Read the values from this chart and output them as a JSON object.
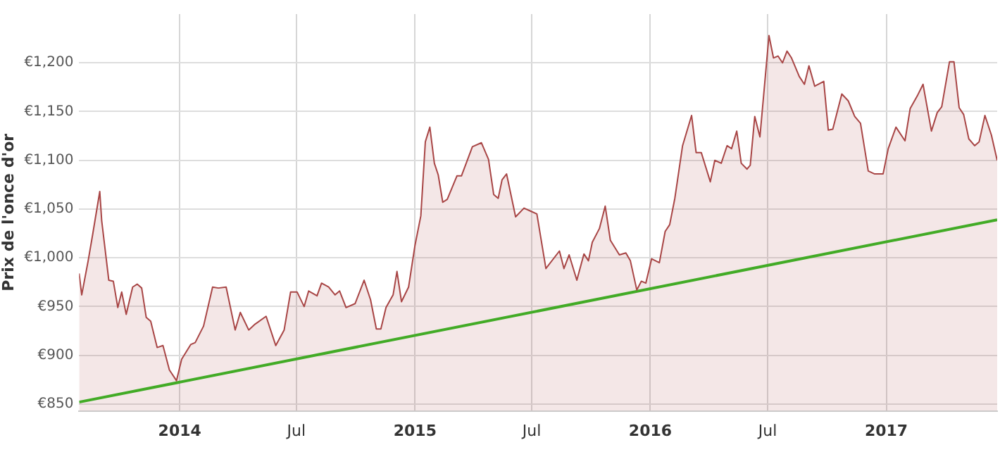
{
  "chart_data": {
    "type": "area",
    "ylabel": "Prix de l'once d'or",
    "x": [
      "2013-07-29",
      "2013-08-02",
      "2013-08-12",
      "2013-08-19",
      "2013-08-30",
      "2013-09-02",
      "2013-09-13",
      "2013-09-20",
      "2013-09-27",
      "2013-10-03",
      "2013-10-10",
      "2013-10-20",
      "2013-10-27",
      "2013-11-03",
      "2013-11-10",
      "2013-11-17",
      "2013-11-27",
      "2013-12-06",
      "2013-12-16",
      "2013-12-27",
      "2014-01-04",
      "2014-01-18",
      "2014-01-25",
      "2014-02-07",
      "2014-02-21",
      "2014-03-02",
      "2014-03-14",
      "2014-03-28",
      "2014-04-05",
      "2014-04-18",
      "2014-04-28",
      "2014-05-15",
      "2014-05-30",
      "2014-06-12",
      "2014-06-22",
      "2014-07-02",
      "2014-07-13",
      "2014-07-20",
      "2014-08-02",
      "2014-08-09",
      "2014-08-20",
      "2014-08-30",
      "2014-09-06",
      "2014-09-16",
      "2014-09-30",
      "2014-10-14",
      "2014-10-24",
      "2014-11-02",
      "2014-11-09",
      "2014-11-17",
      "2014-11-28",
      "2014-12-04",
      "2014-12-11",
      "2014-12-22",
      "2015-01-01",
      "2015-01-10",
      "2015-01-17",
      "2015-01-24",
      "2015-01-31",
      "2015-02-06",
      "2015-02-13",
      "2015-02-20",
      "2015-03-07",
      "2015-03-14",
      "2015-03-31",
      "2015-04-14",
      "2015-04-25",
      "2015-05-03",
      "2015-05-10",
      "2015-05-16",
      "2015-05-23",
      "2015-06-06",
      "2015-06-19",
      "2015-06-29",
      "2015-07-09",
      "2015-07-23",
      "2015-08-13",
      "2015-08-20",
      "2015-08-28",
      "2015-09-09",
      "2015-09-20",
      "2015-09-27",
      "2015-10-03",
      "2015-10-14",
      "2015-10-23",
      "2015-10-31",
      "2015-11-14",
      "2015-11-24",
      "2015-12-01",
      "2015-12-11",
      "2015-12-18",
      "2015-12-25",
      "2016-01-03",
      "2016-01-15",
      "2016-01-24",
      "2016-01-31",
      "2016-02-08",
      "2016-02-20",
      "2016-03-05",
      "2016-03-12",
      "2016-03-20",
      "2016-04-03",
      "2016-04-10",
      "2016-04-20",
      "2016-04-29",
      "2016-05-06",
      "2016-05-14",
      "2016-05-21",
      "2016-05-30",
      "2016-06-04",
      "2016-06-11",
      "2016-06-19",
      "2016-07-03",
      "2016-07-10",
      "2016-07-17",
      "2016-07-24",
      "2016-07-31",
      "2016-08-07",
      "2016-08-19",
      "2016-08-27",
      "2016-09-03",
      "2016-09-12",
      "2016-09-26",
      "2016-10-03",
      "2016-10-10",
      "2016-10-24",
      "2016-11-03",
      "2016-11-13",
      "2016-11-22",
      "2016-12-04",
      "2016-12-14",
      "2016-12-27",
      "2017-01-04",
      "2017-01-16",
      "2017-01-30",
      "2017-02-07",
      "2017-02-18",
      "2017-02-27",
      "2017-03-12",
      "2017-03-21",
      "2017-03-28",
      "2017-04-09",
      "2017-04-16",
      "2017-04-24",
      "2017-05-01",
      "2017-05-09",
      "2017-05-18",
      "2017-05-25",
      "2017-06-03",
      "2017-06-13",
      "2017-06-22"
    ],
    "series": [
      {
        "color": "#a84545",
        "values": [
          984,
          962,
          997,
          1024,
          1068,
          1038,
          977,
          976,
          949,
          965,
          942,
          970,
          973,
          969,
          939,
          935,
          908,
          910,
          885,
          874,
          896,
          911,
          913,
          930,
          970,
          969,
          970,
          926,
          944,
          926,
          932,
          940,
          910,
          926,
          965,
          965,
          950,
          966,
          961,
          974,
          970,
          962,
          966,
          949,
          953,
          977,
          957,
          927,
          927,
          949,
          962,
          986,
          955,
          970,
          1013,
          1043,
          1119,
          1134,
          1097,
          1085,
          1057,
          1060,
          1084,
          1084,
          1114,
          1118,
          1101,
          1065,
          1061,
          1080,
          1086,
          1042,
          1051,
          1048,
          1045,
          989,
          1007,
          989,
          1003,
          977,
          1004,
          997,
          1016,
          1030,
          1053,
          1018,
          1003,
          1005,
          997,
          967,
          976,
          974,
          999,
          995,
          1027,
          1034,
          1061,
          1115,
          1146,
          1108,
          1108,
          1078,
          1100,
          1097,
          1115,
          1112,
          1130,
          1097,
          1091,
          1095,
          1145,
          1124,
          1228,
          1205,
          1207,
          1200,
          1212,
          1205,
          1186,
          1178,
          1197,
          1176,
          1181,
          1131,
          1132,
          1168,
          1161,
          1145,
          1138,
          1089,
          1086,
          1086,
          1112,
          1134,
          1120,
          1153,
          1166,
          1178,
          1130,
          1149,
          1155,
          1201,
          1201,
          1154,
          1147,
          1122,
          1115,
          1119,
          1146,
          1126,
          1100
        ]
      },
      {
        "type": "line",
        "color": "#33bb22",
        "x": [
          "2013-07-29",
          "2017-06-22"
        ],
        "values": [
          852,
          1039
        ]
      }
    ],
    "xlim": [
      "2013-07-29",
      "2017-06-22"
    ],
    "xticks": [
      {
        "value": "2014-01-01",
        "label": "2014"
      },
      {
        "value": "2014-07-01",
        "label": "Jul"
      },
      {
        "value": "2015-01-01",
        "label": "2015"
      },
      {
        "value": "2015-07-01",
        "label": "Jul"
      },
      {
        "value": "2016-01-01",
        "label": "2016"
      },
      {
        "value": "2016-07-01",
        "label": "Jul"
      },
      {
        "value": "2017-01-01",
        "label": "2017"
      }
    ],
    "ylim": [
      843,
      1250
    ],
    "yticks": [
      {
        "value": 850,
        "label": "€850"
      },
      {
        "value": 900,
        "label": "€900"
      },
      {
        "value": 950,
        "label": "€950"
      },
      {
        "value": 1000,
        "label": "€1,000"
      },
      {
        "value": 1050,
        "label": "€1,050"
      },
      {
        "value": 1100,
        "label": "€1,100"
      },
      {
        "value": 1150,
        "label": "€1,150"
      },
      {
        "value": 1200,
        "label": "€1,200"
      }
    ],
    "grid": true,
    "marker": "none",
    "line_style": "solid"
  }
}
